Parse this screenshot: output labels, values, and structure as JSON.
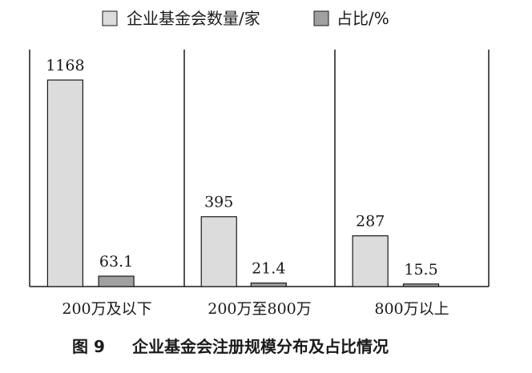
{
  "chart_data": {
    "type": "bar",
    "categories": [
      "200万及以下",
      "200万至800万",
      "800万以上"
    ],
    "series": [
      {
        "name": "企业基金会数量/家",
        "values": [
          1168,
          395,
          287
        ],
        "color": "#dcdcdc"
      },
      {
        "name": "占比/%",
        "values": [
          63.1,
          21.4,
          15.5
        ],
        "color": "#a0a0a0"
      }
    ],
    "value_labels": [
      [
        "1168",
        "395",
        "287"
      ],
      [
        "63.1",
        "21.4",
        "15.5"
      ]
    ],
    "ylim": [
      0,
      1300
    ],
    "legend_position": "top",
    "grid": false,
    "caption": {
      "number": "图 9",
      "text": "企业基金会注册规模分布及占比情况"
    }
  }
}
